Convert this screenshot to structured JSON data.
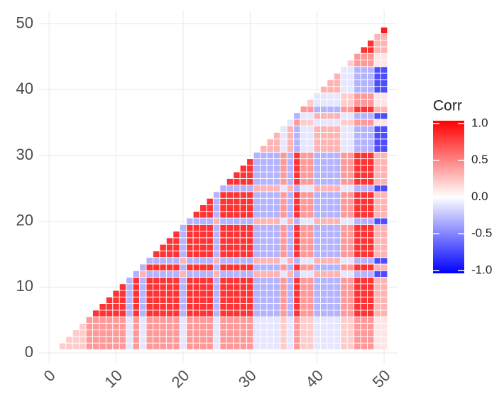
{
  "chart_data": {
    "type": "heatmap",
    "x": [
      2,
      3,
      4,
      5,
      6,
      7,
      8,
      9,
      10,
      11,
      12,
      13,
      14,
      15,
      16,
      17,
      18,
      19,
      20,
      21,
      22,
      23,
      24,
      25,
      26,
      27,
      28,
      29,
      30,
      31,
      32,
      33,
      34,
      35,
      36,
      37,
      38,
      39,
      40,
      41,
      42,
      43,
      44,
      45,
      46,
      47,
      48,
      49,
      50
    ],
    "y": [
      1,
      2,
      3,
      4,
      5,
      6,
      7,
      8,
      9,
      10,
      11,
      12,
      13,
      14,
      15,
      16,
      17,
      18,
      19,
      20,
      21,
      22,
      23,
      24,
      25,
      26,
      27,
      28,
      29,
      30,
      31,
      32,
      33,
      34,
      35,
      36,
      37,
      38,
      39,
      40,
      41,
      42,
      43,
      44,
      45,
      46,
      47,
      48,
      49
    ],
    "z": [
      [
        0.2
      ],
      [
        0.2,
        0.2
      ],
      [
        0.2,
        0.2,
        0.2
      ],
      [
        0.2,
        0.2,
        0.2,
        0.2
      ],
      [
        0.4,
        0.4,
        0.4,
        0.4,
        0.4
      ],
      [
        0.4,
        0.4,
        0.4,
        0.4,
        0.4,
        0.8
      ],
      [
        0.4,
        0.4,
        0.4,
        0.4,
        0.4,
        0.8,
        0.8
      ],
      [
        0.4,
        0.4,
        0.4,
        0.4,
        0.4,
        0.8,
        0.8,
        0.8
      ],
      [
        0.4,
        0.4,
        0.4,
        0.4,
        0.4,
        0.8,
        0.8,
        0.8,
        0.8
      ],
      [
        0.4,
        0.4,
        0.4,
        0.4,
        0.4,
        0.8,
        0.8,
        0.8,
        0.8,
        0.8
      ],
      [
        -0.1,
        -0.1,
        -0.1,
        -0.1,
        -0.1,
        -0.3,
        -0.3,
        -0.3,
        -0.3,
        -0.3,
        -0.3
      ],
      [
        0.4,
        0.4,
        0.4,
        0.4,
        0.4,
        0.8,
        0.8,
        0.8,
        0.8,
        0.8,
        0.8,
        -0.3
      ],
      [
        -0.1,
        -0.1,
        -0.1,
        -0.1,
        -0.1,
        -0.3,
        -0.3,
        -0.3,
        -0.3,
        -0.3,
        -0.3,
        0.3,
        -0.3
      ],
      [
        0.4,
        0.4,
        0.4,
        0.4,
        0.4,
        0.8,
        0.8,
        0.8,
        0.8,
        0.8,
        0.8,
        -0.3,
        0.8,
        -0.3
      ],
      [
        0.4,
        0.4,
        0.4,
        0.4,
        0.4,
        0.8,
        0.8,
        0.8,
        0.8,
        0.8,
        0.8,
        -0.3,
        0.8,
        -0.3,
        0.8
      ],
      [
        0.4,
        0.4,
        0.4,
        0.4,
        0.4,
        0.8,
        0.8,
        0.8,
        0.8,
        0.8,
        0.8,
        -0.3,
        0.8,
        -0.3,
        0.8,
        0.8
      ],
      [
        0.4,
        0.4,
        0.4,
        0.4,
        0.4,
        0.8,
        0.8,
        0.8,
        0.8,
        0.8,
        0.8,
        -0.3,
        0.8,
        -0.3,
        0.8,
        0.8,
        0.8
      ],
      [
        0.4,
        0.4,
        0.4,
        0.4,
        0.4,
        0.8,
        0.8,
        0.8,
        0.8,
        0.8,
        0.8,
        -0.3,
        0.8,
        -0.3,
        0.8,
        0.8,
        0.8,
        0.8
      ],
      [
        -0.1,
        -0.1,
        -0.1,
        -0.1,
        -0.1,
        -0.3,
        -0.3,
        -0.3,
        -0.3,
        -0.3,
        -0.3,
        0.3,
        -0.3,
        0.3,
        -0.3,
        -0.3,
        -0.3,
        -0.3,
        -0.3
      ],
      [
        0.4,
        0.4,
        0.4,
        0.4,
        0.4,
        0.8,
        0.8,
        0.8,
        0.8,
        0.8,
        0.8,
        -0.3,
        0.8,
        -0.3,
        0.8,
        0.8,
        0.8,
        0.8,
        0.8,
        -0.3
      ],
      [
        0.4,
        0.4,
        0.4,
        0.4,
        0.4,
        0.8,
        0.8,
        0.8,
        0.8,
        0.8,
        0.8,
        -0.3,
        0.8,
        -0.3,
        0.8,
        0.8,
        0.8,
        0.8,
        0.8,
        -0.3,
        0.8
      ],
      [
        0.4,
        0.4,
        0.4,
        0.4,
        0.4,
        0.8,
        0.8,
        0.8,
        0.8,
        0.8,
        0.8,
        -0.3,
        0.8,
        -0.3,
        0.8,
        0.8,
        0.8,
        0.8,
        0.8,
        -0.3,
        0.8,
        0.8
      ],
      [
        0.4,
        0.4,
        0.4,
        0.4,
        0.4,
        0.8,
        0.8,
        0.8,
        0.8,
        0.8,
        0.8,
        -0.3,
        0.8,
        -0.3,
        0.8,
        0.8,
        0.8,
        0.8,
        0.8,
        -0.3,
        0.8,
        0.8,
        0.8
      ],
      [
        -0.1,
        -0.1,
        -0.1,
        -0.1,
        -0.1,
        -0.3,
        -0.3,
        -0.3,
        -0.3,
        -0.3,
        -0.3,
        0.3,
        -0.3,
        0.3,
        -0.3,
        -0.3,
        -0.3,
        -0.3,
        -0.3,
        0.3,
        -0.3,
        -0.3,
        -0.3,
        -0.3
      ],
      [
        0.4,
        0.4,
        0.4,
        0.4,
        0.4,
        0.8,
        0.8,
        0.8,
        0.8,
        0.8,
        0.8,
        -0.3,
        0.8,
        -0.3,
        0.8,
        0.8,
        0.8,
        0.8,
        0.8,
        -0.3,
        0.8,
        0.8,
        0.8,
        0.8,
        -0.3
      ],
      [
        0.4,
        0.4,
        0.4,
        0.4,
        0.4,
        0.8,
        0.8,
        0.8,
        0.8,
        0.8,
        0.8,
        -0.3,
        0.8,
        -0.3,
        0.8,
        0.8,
        0.8,
        0.8,
        0.8,
        -0.3,
        0.8,
        0.8,
        0.8,
        0.8,
        -0.3,
        0.8
      ],
      [
        0.4,
        0.4,
        0.4,
        0.4,
        0.4,
        0.8,
        0.8,
        0.8,
        0.8,
        0.8,
        0.8,
        -0.3,
        0.8,
        -0.3,
        0.8,
        0.8,
        0.8,
        0.8,
        0.8,
        -0.3,
        0.8,
        0.8,
        0.8,
        0.8,
        -0.3,
        0.8,
        0.8
      ],
      [
        0.4,
        0.4,
        0.4,
        0.4,
        0.4,
        0.8,
        0.8,
        0.8,
        0.8,
        0.8,
        0.8,
        -0.3,
        0.8,
        -0.3,
        0.8,
        0.8,
        0.8,
        0.8,
        0.8,
        -0.3,
        0.8,
        0.8,
        0.8,
        0.8,
        -0.3,
        0.8,
        0.8,
        0.8
      ],
      [
        0.4,
        0.4,
        0.4,
        0.4,
        0.4,
        0.8,
        0.8,
        0.8,
        0.8,
        0.8,
        0.8,
        -0.3,
        0.8,
        -0.3,
        0.8,
        0.8,
        0.8,
        0.8,
        0.8,
        -0.3,
        0.8,
        0.8,
        0.8,
        0.8,
        -0.3,
        0.8,
        0.8,
        0.8,
        0.8
      ],
      [
        -0.1,
        -0.1,
        -0.1,
        -0.1,
        -0.1,
        -0.3,
        -0.3,
        -0.3,
        -0.3,
        -0.3,
        -0.3,
        0.3,
        -0.3,
        0.3,
        -0.3,
        -0.3,
        -0.3,
        -0.3,
        -0.3,
        0.3,
        -0.3,
        -0.3,
        -0.3,
        -0.3,
        0.3,
        -0.3,
        -0.3,
        -0.3,
        -0.3,
        -0.3
      ],
      [
        -0.1,
        -0.1,
        -0.1,
        -0.1,
        -0.1,
        -0.3,
        -0.3,
        -0.3,
        -0.3,
        -0.3,
        -0.3,
        0.3,
        -0.3,
        0.3,
        -0.3,
        -0.3,
        -0.3,
        -0.3,
        -0.3,
        0.3,
        -0.3,
        -0.3,
        -0.3,
        -0.3,
        0.3,
        -0.3,
        -0.3,
        -0.3,
        -0.3,
        -0.3,
        0.3
      ],
      [
        -0.1,
        -0.1,
        -0.1,
        -0.1,
        -0.1,
        -0.3,
        -0.3,
        -0.3,
        -0.3,
        -0.3,
        -0.3,
        0.3,
        -0.3,
        0.3,
        -0.3,
        -0.3,
        -0.3,
        -0.3,
        -0.3,
        0.3,
        -0.3,
        -0.3,
        -0.3,
        -0.3,
        0.3,
        -0.3,
        -0.3,
        -0.3,
        -0.3,
        -0.3,
        0.3,
        0.3
      ],
      [
        -0.1,
        -0.1,
        -0.1,
        -0.1,
        -0.1,
        -0.3,
        -0.3,
        -0.3,
        -0.3,
        -0.3,
        -0.3,
        0.3,
        -0.3,
        0.3,
        -0.3,
        -0.3,
        -0.3,
        -0.3,
        -0.3,
        0.3,
        -0.3,
        -0.3,
        -0.3,
        -0.3,
        0.3,
        -0.3,
        -0.3,
        -0.3,
        -0.3,
        -0.3,
        0.3,
        0.3,
        0.3
      ],
      [
        0.2,
        0.2,
        0.2,
        0.2,
        0.2,
        0.4,
        0.4,
        0.4,
        0.4,
        0.4,
        0.4,
        -0.1,
        0.4,
        -0.1,
        0.4,
        0.4,
        0.4,
        0.4,
        0.4,
        -0.1,
        0.4,
        0.4,
        0.4,
        0.4,
        -0.1,
        0.4,
        0.4,
        0.4,
        0.4,
        0.4,
        -0.1,
        -0.1,
        -0.1,
        -0.1
      ],
      [
        -0.1,
        -0.1,
        -0.1,
        -0.1,
        -0.1,
        -0.3,
        -0.3,
        -0.3,
        -0.3,
        -0.3,
        -0.3,
        0.3,
        -0.3,
        0.3,
        -0.3,
        -0.3,
        -0.3,
        -0.3,
        -0.3,
        0.3,
        -0.3,
        -0.3,
        -0.3,
        -0.3,
        0.3,
        -0.3,
        -0.3,
        -0.3,
        -0.3,
        -0.3,
        0.3,
        0.3,
        0.3,
        0.3,
        -0.1
      ],
      [
        0.4,
        0.4,
        0.4,
        0.4,
        0.4,
        0.8,
        0.8,
        0.8,
        0.8,
        0.8,
        0.8,
        -0.3,
        0.8,
        -0.3,
        0.8,
        0.8,
        0.8,
        0.8,
        0.8,
        -0.3,
        0.8,
        0.8,
        0.8,
        0.8,
        -0.3,
        0.8,
        0.8,
        0.8,
        0.8,
        0.8,
        -0.3,
        -0.3,
        -0.3,
        -0.3,
        0.4,
        -0.3
      ],
      [
        0.2,
        0.2,
        0.2,
        0.2,
        0.2,
        0.4,
        0.4,
        0.4,
        0.4,
        0.4,
        0.4,
        -0.1,
        0.4,
        -0.1,
        0.4,
        0.4,
        0.4,
        0.4,
        0.4,
        -0.1,
        0.4,
        0.4,
        0.4,
        0.4,
        -0.1,
        0.4,
        0.4,
        0.4,
        0.4,
        0.4,
        -0.1,
        -0.1,
        -0.1,
        -0.1,
        0.2,
        -0.1,
        0.4
      ],
      [
        0.2,
        0.2,
        0.2,
        0.2,
        0.2,
        0.4,
        0.4,
        0.4,
        0.4,
        0.4,
        0.4,
        -0.1,
        0.4,
        -0.1,
        0.4,
        0.4,
        0.4,
        0.4,
        0.4,
        -0.1,
        0.4,
        0.4,
        0.4,
        0.4,
        -0.1,
        0.4,
        0.4,
        0.4,
        0.4,
        0.4,
        -0.1,
        -0.1,
        -0.1,
        -0.1,
        0.2,
        -0.1,
        0.4,
        0.2
      ],
      [
        -0.1,
        -0.1,
        -0.1,
        -0.1,
        -0.1,
        -0.3,
        -0.3,
        -0.3,
        -0.3,
        -0.3,
        -0.3,
        0.3,
        -0.3,
        0.3,
        -0.3,
        -0.3,
        -0.3,
        -0.3,
        -0.3,
        0.3,
        -0.3,
        -0.3,
        -0.3,
        -0.3,
        0.3,
        -0.3,
        -0.3,
        -0.3,
        -0.3,
        -0.3,
        0.3,
        0.3,
        0.3,
        0.3,
        -0.1,
        0.3,
        -0.3,
        -0.1,
        -0.1
      ],
      [
        -0.1,
        -0.1,
        -0.1,
        -0.1,
        -0.1,
        -0.3,
        -0.3,
        -0.3,
        -0.3,
        -0.3,
        -0.3,
        0.3,
        -0.3,
        0.3,
        -0.3,
        -0.3,
        -0.3,
        -0.3,
        -0.3,
        0.3,
        -0.3,
        -0.3,
        -0.3,
        -0.3,
        0.3,
        -0.3,
        -0.3,
        -0.3,
        -0.3,
        -0.3,
        0.3,
        0.3,
        0.3,
        0.3,
        -0.1,
        0.3,
        -0.3,
        -0.1,
        -0.1,
        0.3
      ],
      [
        -0.1,
        -0.1,
        -0.1,
        -0.1,
        -0.1,
        -0.3,
        -0.3,
        -0.3,
        -0.3,
        -0.3,
        -0.3,
        0.3,
        -0.3,
        0.3,
        -0.3,
        -0.3,
        -0.3,
        -0.3,
        -0.3,
        0.3,
        -0.3,
        -0.3,
        -0.3,
        -0.3,
        0.3,
        -0.3,
        -0.3,
        -0.3,
        -0.3,
        -0.3,
        0.3,
        0.3,
        0.3,
        0.3,
        -0.1,
        0.3,
        -0.3,
        -0.1,
        -0.1,
        0.3,
        0.3
      ],
      [
        -0.1,
        -0.1,
        -0.1,
        -0.1,
        -0.1,
        -0.3,
        -0.3,
        -0.3,
        -0.3,
        -0.3,
        -0.3,
        0.3,
        -0.3,
        0.3,
        -0.3,
        -0.3,
        -0.3,
        -0.3,
        -0.3,
        0.3,
        -0.3,
        -0.3,
        -0.3,
        -0.3,
        0.3,
        -0.3,
        -0.3,
        -0.3,
        -0.3,
        -0.3,
        0.3,
        0.3,
        0.3,
        0.3,
        -0.1,
        0.3,
        -0.3,
        -0.1,
        -0.1,
        0.3,
        0.3,
        0.3
      ],
      [
        0.2,
        0.2,
        0.2,
        0.2,
        0.2,
        0.4,
        0.4,
        0.4,
        0.4,
        0.4,
        0.4,
        -0.1,
        0.4,
        -0.1,
        0.4,
        0.4,
        0.4,
        0.4,
        0.4,
        -0.1,
        0.4,
        0.4,
        0.4,
        0.4,
        -0.1,
        0.4,
        0.4,
        0.4,
        0.4,
        0.4,
        -0.1,
        -0.1,
        -0.1,
        -0.1,
        0.2,
        -0.1,
        0.4,
        0.2,
        0.2,
        -0.1,
        -0.1,
        -0.1,
        -0.1
      ],
      [
        0.2,
        0.2,
        0.2,
        0.2,
        0.2,
        0.4,
        0.4,
        0.4,
        0.4,
        0.4,
        0.4,
        -0.1,
        0.4,
        -0.1,
        0.4,
        0.4,
        0.4,
        0.4,
        0.4,
        -0.1,
        0.4,
        0.4,
        0.4,
        0.4,
        -0.1,
        0.4,
        0.4,
        0.4,
        0.4,
        0.4,
        -0.1,
        -0.1,
        -0.1,
        -0.1,
        0.2,
        -0.1,
        0.4,
        0.2,
        0.2,
        -0.1,
        -0.1,
        -0.1,
        -0.1,
        0.2
      ],
      [
        0.4,
        0.4,
        0.4,
        0.4,
        0.4,
        0.8,
        0.8,
        0.8,
        0.8,
        0.8,
        0.8,
        -0.3,
        0.8,
        -0.3,
        0.8,
        0.8,
        0.8,
        0.8,
        0.8,
        -0.3,
        0.8,
        0.8,
        0.8,
        0.8,
        -0.3,
        0.8,
        0.8,
        0.8,
        0.8,
        0.8,
        -0.3,
        -0.3,
        -0.3,
        -0.3,
        0.4,
        -0.3,
        0.8,
        0.4,
        0.4,
        -0.3,
        -0.3,
        -0.3,
        -0.3,
        0.4,
        0.4
      ],
      [
        0.4,
        0.4,
        0.4,
        0.4,
        0.4,
        0.8,
        0.8,
        0.8,
        0.8,
        0.8,
        0.8,
        -0.3,
        0.8,
        -0.3,
        0.8,
        0.8,
        0.8,
        0.8,
        0.8,
        -0.3,
        0.8,
        0.8,
        0.8,
        0.8,
        -0.3,
        0.8,
        0.8,
        0.8,
        0.8,
        0.8,
        -0.3,
        -0.3,
        -0.3,
        -0.3,
        0.4,
        -0.3,
        0.8,
        0.4,
        0.4,
        -0.3,
        -0.3,
        -0.3,
        -0.3,
        0.4,
        0.4,
        0.8
      ],
      [
        0.4,
        0.4,
        0.4,
        0.4,
        0.4,
        0.8,
        0.8,
        0.8,
        0.8,
        0.8,
        0.8,
        -0.3,
        0.8,
        -0.3,
        0.8,
        0.8,
        0.8,
        0.8,
        0.8,
        -0.3,
        0.8,
        0.8,
        0.8,
        0.8,
        -0.3,
        0.8,
        0.8,
        0.8,
        0.8,
        0.8,
        -0.3,
        -0.3,
        -0.3,
        -0.3,
        0.4,
        -0.3,
        0.8,
        0.4,
        0.4,
        -0.3,
        -0.3,
        -0.3,
        -0.3,
        0.4,
        0.4,
        0.8,
        0.8
      ],
      [
        0.1,
        0.1,
        0.1,
        0.1,
        0.1,
        0.3,
        0.3,
        0.3,
        0.3,
        0.3,
        0.3,
        -0.7,
        0.3,
        -0.7,
        0.3,
        0.3,
        0.3,
        0.3,
        0.3,
        -0.7,
        0.3,
        0.3,
        0.3,
        0.3,
        -0.7,
        0.3,
        0.3,
        0.3,
        0.3,
        0.3,
        -0.7,
        -0.7,
        -0.7,
        -0.7,
        0.1,
        -0.7,
        0.3,
        0.1,
        0.1,
        -0.7,
        -0.7,
        -0.7,
        -0.7,
        0.1,
        0.1,
        0.3,
        0.3,
        0.3
      ],
      [
        0.1,
        0.1,
        0.1,
        0.1,
        0.1,
        0.3,
        0.3,
        0.3,
        0.3,
        0.3,
        0.3,
        -0.7,
        0.3,
        -0.7,
        0.3,
        0.3,
        0.3,
        0.3,
        0.3,
        -0.7,
        0.3,
        0.3,
        0.3,
        0.3,
        -0.7,
        0.3,
        0.3,
        0.3,
        0.3,
        0.3,
        -0.7,
        -0.7,
        -0.7,
        -0.7,
        0.1,
        -0.7,
        0.3,
        0.1,
        0.1,
        -0.7,
        -0.7,
        -0.7,
        -0.7,
        0.1,
        0.1,
        0.3,
        0.3,
        0.3,
        0.9
      ]
    ],
    "xlim": [
      -1.5,
      52
    ],
    "ylim": [
      -1.5,
      52
    ],
    "xticks": [
      0,
      10,
      20,
      30,
      40,
      50
    ],
    "yticks": [
      0,
      10,
      20,
      30,
      40,
      50
    ],
    "grid": true,
    "colors": {
      "low": "#0000ff",
      "mid": "#ffffff",
      "high": "#ff0000"
    },
    "legend": {
      "title": "Corr",
      "position": "right",
      "range": [
        -1,
        1
      ],
      "ticks": [
        {
          "value": 1,
          "label": "1.0"
        },
        {
          "value": 0.5,
          "label": "0.5"
        },
        {
          "value": 0,
          "label": "0.0"
        },
        {
          "value": -0.5,
          "label": "-0.5"
        },
        {
          "value": -1,
          "label": "-1.0"
        }
      ]
    }
  }
}
